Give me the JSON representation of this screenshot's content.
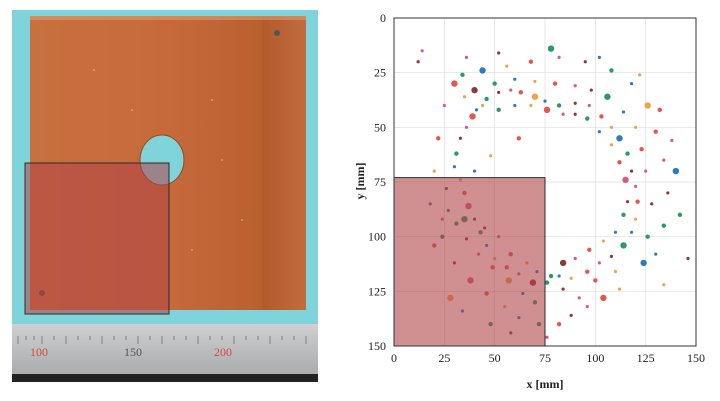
{
  "photo": {
    "ruler_labels": [
      "100",
      "150",
      "200"
    ],
    "colors": {
      "background": "#7fd3da",
      "copper_plate": "#c56a3c",
      "highlight_fill": "#b04448",
      "highlight_border": "#2b2b2b",
      "ruler": "#b9babc"
    }
  },
  "chart_data": {
    "type": "scatter",
    "title": "",
    "xlabel": "x [mm]",
    "ylabel": "y [mm]",
    "xlim": [
      0,
      150
    ],
    "ylim": [
      150,
      0
    ],
    "y_inverted": true,
    "x_ticks": [
      "0",
      "25",
      "50",
      "75",
      "100",
      "125",
      "150"
    ],
    "y_ticks": [
      "0",
      "25",
      "50",
      "75",
      "100",
      "125",
      "150"
    ],
    "grid": true,
    "legend": "none",
    "ring": {
      "center": [
        88,
        80
      ],
      "radius": 43
    },
    "highlight_region": {
      "x": [
        0,
        75
      ],
      "y": [
        73,
        150
      ]
    },
    "marker_colors": [
      "#e4574d",
      "#f0a24a",
      "#2e7bbf",
      "#2b9a6a",
      "#8b3a3a",
      "#d85a8a"
    ],
    "series": [
      {
        "name": "",
        "points": [
          [
            30,
            30
          ],
          [
            35,
            36
          ],
          [
            41,
            42
          ],
          [
            46,
            37
          ],
          [
            52,
            34
          ],
          [
            58,
            33
          ],
          [
            63,
            34
          ],
          [
            70,
            36
          ],
          [
            75,
            38
          ],
          [
            82,
            40
          ],
          [
            90,
            39
          ],
          [
            97,
            40
          ],
          [
            103,
            45
          ],
          [
            108,
            50
          ],
          [
            112,
            55
          ],
          [
            116,
            62
          ],
          [
            118,
            70
          ],
          [
            120,
            77
          ],
          [
            121,
            84
          ],
          [
            120,
            92
          ],
          [
            118,
            98
          ],
          [
            114,
            104
          ],
          [
            108,
            109
          ],
          [
            102,
            112
          ],
          [
            96,
            116
          ],
          [
            88,
            119
          ],
          [
            82,
            118
          ],
          [
            76,
            121
          ],
          [
            69,
            121
          ],
          [
            62,
            117
          ],
          [
            56,
            114
          ],
          [
            50,
            110
          ],
          [
            46,
            104
          ],
          [
            43,
            98
          ],
          [
            40,
            92
          ],
          [
            37,
            86
          ],
          [
            35,
            80
          ],
          [
            33,
            74
          ],
          [
            30,
            68
          ],
          [
            31,
            62
          ],
          [
            33,
            55
          ],
          [
            36,
            50
          ],
          [
            39,
            45
          ],
          [
            44,
            40
          ],
          [
            27,
            88
          ],
          [
            31,
            94
          ],
          [
            36,
            101
          ],
          [
            42,
            108
          ],
          [
            49,
            114
          ],
          [
            57,
            120
          ],
          [
            64,
            126
          ],
          [
            70,
            130
          ],
          [
            84,
            124
          ],
          [
            92,
            128
          ],
          [
            100,
            120
          ],
          [
            110,
            116
          ],
          [
            124,
            112
          ],
          [
            126,
            100
          ],
          [
            128,
            85
          ],
          [
            125,
            70
          ],
          [
            123,
            60
          ],
          [
            120,
            50
          ],
          [
            114,
            43
          ],
          [
            106,
            36
          ],
          [
            98,
            33
          ],
          [
            90,
            31
          ],
          [
            80,
            30
          ],
          [
            70,
            29
          ],
          [
            60,
            28
          ],
          [
            50,
            30
          ],
          [
            40,
            33
          ],
          [
            25,
            40
          ],
          [
            22,
            55
          ],
          [
            20,
            70
          ],
          [
            18,
            85
          ],
          [
            24,
            100
          ],
          [
            30,
            112
          ],
          [
            38,
            120
          ],
          [
            46,
            126
          ],
          [
            55,
            132
          ],
          [
            62,
            137
          ],
          [
            72,
            140
          ],
          [
            88,
            136
          ],
          [
            96,
            132
          ],
          [
            104,
            128
          ],
          [
            112,
            124
          ],
          [
            130,
            108
          ],
          [
            134,
            95
          ],
          [
            136,
            80
          ],
          [
            134,
            65
          ],
          [
            130,
            52
          ],
          [
            126,
            40
          ],
          [
            118,
            30
          ],
          [
            108,
            24
          ],
          [
            95,
            20
          ],
          [
            82,
            18
          ],
          [
            68,
            20
          ],
          [
            56,
            22
          ],
          [
            44,
            24
          ],
          [
            34,
            26
          ],
          [
            12,
            20
          ],
          [
            14,
            15
          ],
          [
            62,
            55
          ],
          [
            48,
            63
          ],
          [
            40,
            70
          ],
          [
            35,
            92
          ],
          [
            45,
            96
          ],
          [
            52,
            100
          ],
          [
            58,
            108
          ],
          [
            66,
            112
          ],
          [
            71,
            116
          ],
          [
            78,
            118
          ],
          [
            84,
            112
          ],
          [
            90,
            110
          ],
          [
            97,
            106
          ],
          [
            104,
            102
          ],
          [
            110,
            98
          ],
          [
            114,
            90
          ],
          [
            116,
            84
          ],
          [
            115,
            74
          ],
          [
            112,
            66
          ],
          [
            108,
            58
          ],
          [
            102,
            52
          ],
          [
            96,
            46
          ],
          [
            90,
            44
          ],
          [
            84,
            44
          ],
          [
            76,
            42
          ],
          [
            68,
            40
          ],
          [
            60,
            40
          ],
          [
            52,
            42
          ],
          [
            26,
            78
          ],
          [
            24,
            92
          ],
          [
            20,
            104
          ],
          [
            28,
            128
          ],
          [
            34,
            134
          ],
          [
            48,
            140
          ],
          [
            58,
            144
          ],
          [
            76,
            146
          ],
          [
            82,
            140
          ],
          [
            134,
            122
          ],
          [
            140,
            70
          ],
          [
            142,
            90
          ],
          [
            146,
            110
          ],
          [
            138,
            56
          ],
          [
            132,
            42
          ],
          [
            122,
            26
          ],
          [
            102,
            18
          ],
          [
            78,
            14
          ],
          [
            52,
            16
          ],
          [
            36,
            18
          ]
        ]
      }
    ]
  }
}
